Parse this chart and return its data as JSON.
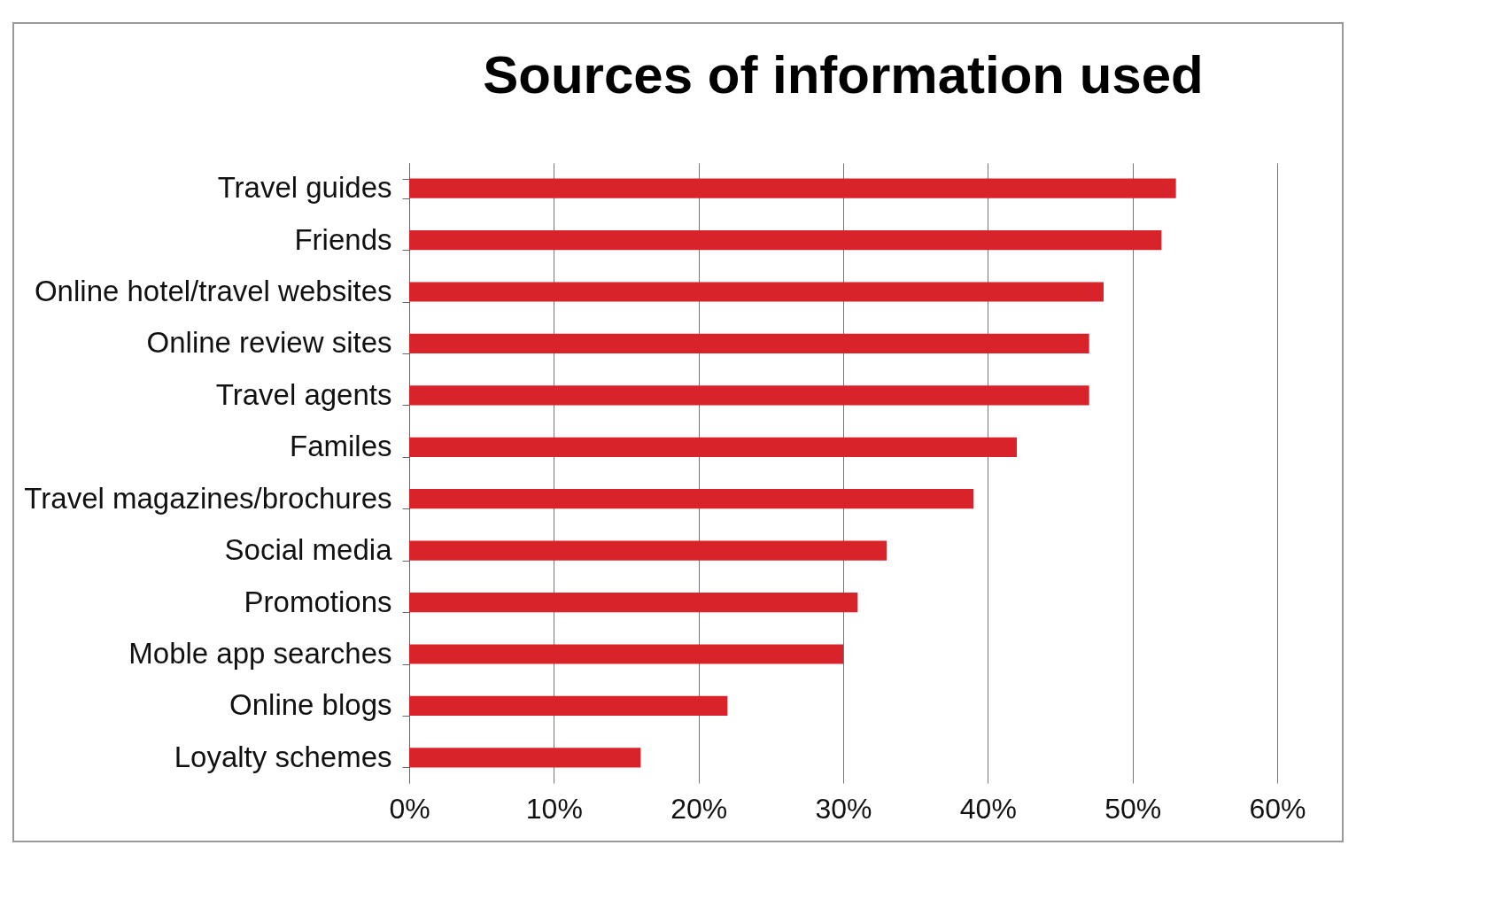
{
  "chart_data": {
    "type": "bar",
    "orientation": "horizontal",
    "title": "Sources of information used",
    "categories": [
      "Travel guides",
      "Friends",
      "Online hotel/travel websites",
      "Online review sites",
      "Travel agents",
      "Familes",
      "Travel magazines/brochures",
      "Social media",
      "Promotions",
      "Moble app  searches",
      "Online blogs",
      "Loyalty schemes"
    ],
    "values": [
      53,
      52,
      48,
      47,
      47,
      42,
      39,
      33,
      31,
      30,
      22,
      16
    ],
    "color": "#d9232a",
    "xlim": [
      0,
      60
    ],
    "xticks": [
      {
        "value": 0,
        "label": "0%"
      },
      {
        "value": 10,
        "label": "10%"
      },
      {
        "value": 20,
        "label": "20%"
      },
      {
        "value": 30,
        "label": "30%"
      },
      {
        "value": 40,
        "label": "40%"
      },
      {
        "value": 50,
        "label": "50%"
      },
      {
        "value": 60,
        "label": "60%"
      }
    ],
    "grid": "x"
  }
}
